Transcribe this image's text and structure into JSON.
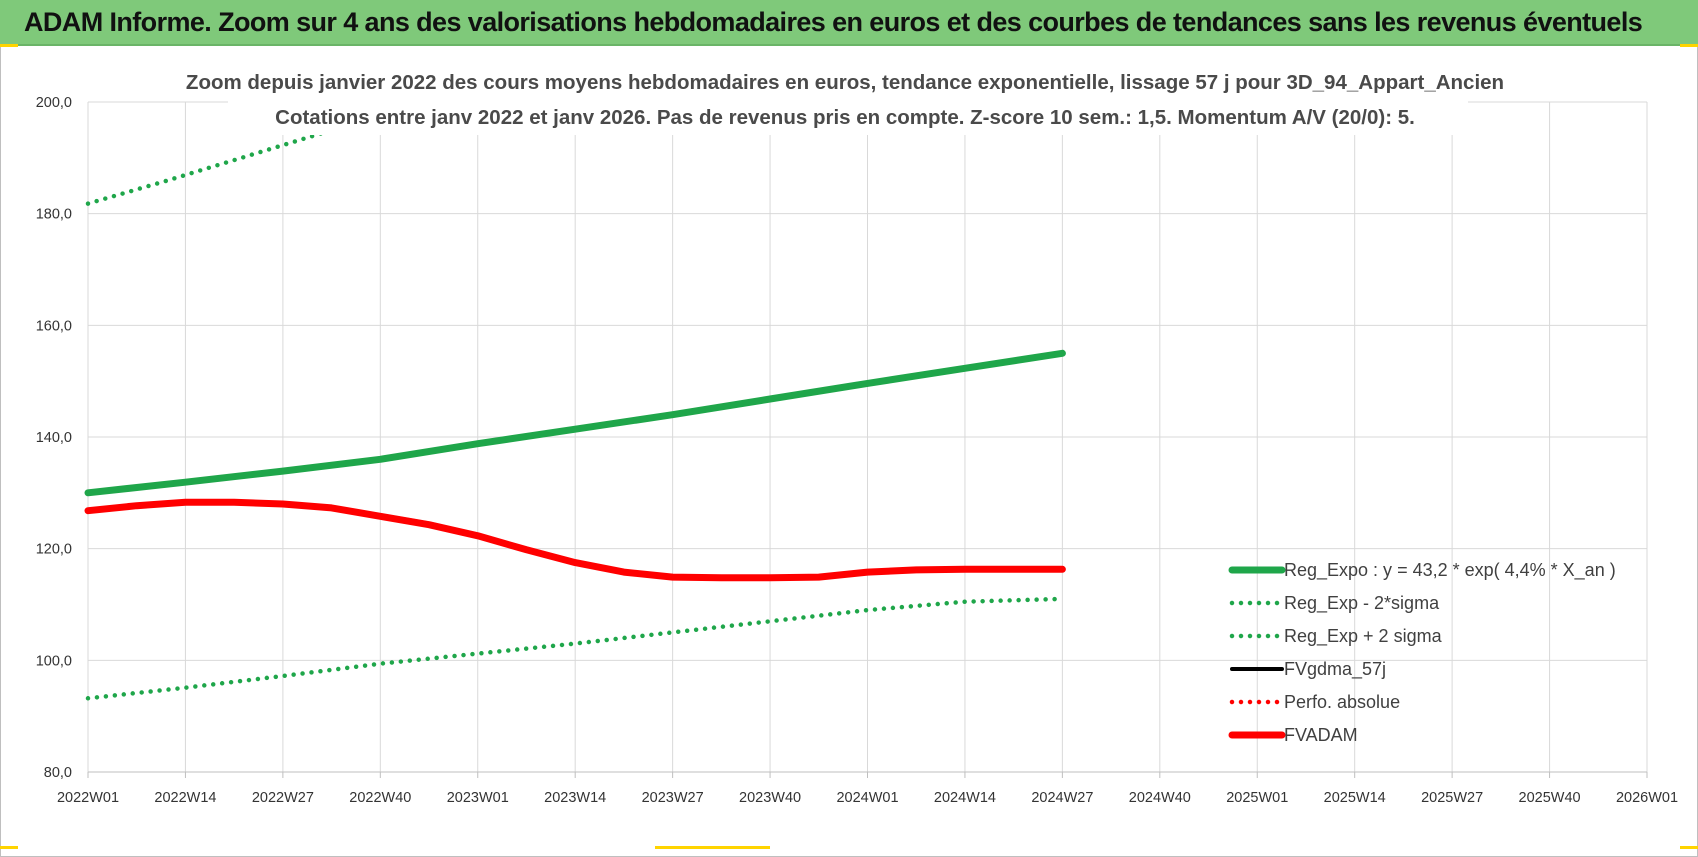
{
  "header": {
    "title": "ADAM Informe. Zoom sur 4 ans des valorisations hebdomadaires en euros et des courbes de tendances sans les revenus éventuels"
  },
  "chart_data": {
    "type": "line",
    "title": "Zoom depuis janvier 2022 des cours moyens hebdomadaires en euros, tendance exponentielle, lissage 57 j pour 3D_94_Appart_Ancien",
    "subtitle": "Cotations entre janv 2022 et janv 2026. Pas de revenus pris en compte. Z-score 10 sem.: 1,5. Momentum A/V (20/0): 5.",
    "xlabel": "",
    "ylabel": "",
    "ylim": [
      80,
      200
    ],
    "grid": true,
    "legend_position": "right",
    "x_tick_labels": [
      "2022W01",
      "2022W14",
      "2022W27",
      "2022W40",
      "2023W01",
      "2023W14",
      "2023W27",
      "2023W40",
      "2024W01",
      "2024W14",
      "2024W27",
      "2024W40",
      "2025W01",
      "2025W14",
      "2025W27",
      "2025W40",
      "2026W01"
    ],
    "y_tick_labels": [
      "80,0",
      "100,0",
      "120,0",
      "140,0",
      "160,0",
      "180,0",
      "200,0"
    ],
    "y_ticks": [
      80,
      100,
      120,
      140,
      160,
      180,
      200
    ],
    "series": [
      {
        "name": "Reg_Expo : y = 43,2 * exp( 4,4% * X_an )",
        "color": "#1fa64a",
        "style": "solid-thick",
        "points": [
          [
            0,
            130.0
          ],
          [
            4,
            131.9
          ],
          [
            8,
            133.9
          ],
          [
            12,
            136.0
          ],
          [
            16,
            138.8
          ],
          [
            20,
            141.4
          ],
          [
            24,
            144.0
          ],
          [
            28,
            146.8
          ],
          [
            32,
            149.6
          ],
          [
            36,
            152.3
          ],
          [
            40,
            155.0
          ]
        ]
      },
      {
        "name": "Reg_Exp - 2*sigma",
        "color": "#1fa64a",
        "style": "dotted",
        "points": [
          [
            0,
            93.2
          ],
          [
            4,
            95.1
          ],
          [
            8,
            97.2
          ],
          [
            12,
            99.4
          ],
          [
            16,
            101.2
          ],
          [
            20,
            103.0
          ],
          [
            24,
            105.0
          ],
          [
            28,
            107.0
          ],
          [
            32,
            109.0
          ],
          [
            36,
            110.5
          ],
          [
            40,
            111.0
          ]
        ]
      },
      {
        "name": "Reg_Exp + 2 sigma",
        "color": "#1fa64a",
        "style": "dotted",
        "points": [
          [
            0,
            181.8
          ],
          [
            3,
            185.6
          ],
          [
            6,
            189.6
          ],
          [
            9,
            193.6
          ],
          [
            12,
            197.6
          ],
          [
            15,
            201.6
          ],
          [
            40,
            201.6
          ]
        ]
      },
      {
        "name": "FVgdma_57j",
        "color": "#000000",
        "style": "solid",
        "points": [
          [
            0,
            126.8
          ],
          [
            2,
            127.8
          ],
          [
            4,
            128.3
          ],
          [
            6,
            128.2
          ],
          [
            8,
            127.8
          ],
          [
            10,
            127.2
          ],
          [
            12,
            126.0
          ],
          [
            14,
            124.5
          ],
          [
            16,
            122.5
          ],
          [
            18,
            120.0
          ],
          [
            20,
            117.5
          ],
          [
            22,
            116.0
          ],
          [
            24,
            115.0
          ],
          [
            26,
            114.9
          ],
          [
            28,
            114.9
          ],
          [
            30,
            114.9
          ],
          [
            32,
            115.8
          ],
          [
            34,
            116.3
          ],
          [
            36,
            116.4
          ],
          [
            38,
            116.4
          ],
          [
            40,
            116.4
          ]
        ]
      },
      {
        "name": "Perfo. absolue",
        "color": "#ff0000",
        "style": "dotted",
        "points": []
      },
      {
        "name": "FVADAM",
        "color": "#ff0000",
        "style": "solid-thick",
        "points": [
          [
            0,
            126.8
          ],
          [
            2,
            127.7
          ],
          [
            4,
            128.3
          ],
          [
            6,
            128.3
          ],
          [
            8,
            128.0
          ],
          [
            10,
            127.3
          ],
          [
            12,
            125.8
          ],
          [
            14,
            124.3
          ],
          [
            16,
            122.3
          ],
          [
            18,
            119.8
          ],
          [
            20,
            117.5
          ],
          [
            22,
            115.8
          ],
          [
            24,
            114.9
          ],
          [
            26,
            114.8
          ],
          [
            28,
            114.8
          ],
          [
            30,
            114.9
          ],
          [
            32,
            115.8
          ],
          [
            34,
            116.2
          ],
          [
            36,
            116.3
          ],
          [
            38,
            116.3
          ],
          [
            40,
            116.3
          ]
        ]
      }
    ]
  }
}
